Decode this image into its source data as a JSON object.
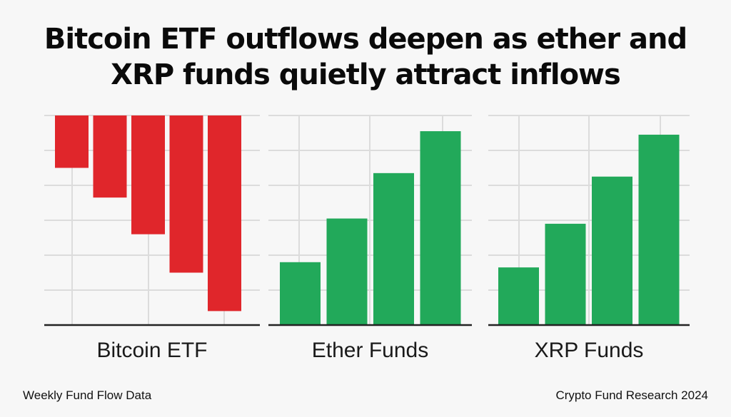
{
  "title": {
    "line1": "Bitcoin ETF outflows deepen as ether and",
    "line2": "XRP funds quietly attract inflows"
  },
  "colors": {
    "outflow": "#e0262b",
    "inflow": "#22a95a",
    "grid": "#dcdcdc",
    "axis": "#222222"
  },
  "chart_data": [
    {
      "type": "bar",
      "panel": "Bitcoin ETF",
      "xlabel": "Bitcoin ETF",
      "series": [
        {
          "name": "Bitcoin ETF",
          "values": [
            -15,
            -23.5,
            -34,
            -45,
            -56
          ]
        }
      ],
      "ylim": [
        -60,
        0
      ],
      "grid": true
    },
    {
      "type": "bar",
      "panel": "Ether Funds",
      "xlabel": "Ether Funds",
      "series": [
        {
          "name": "Ether Funds",
          "values": [
            18,
            30.5,
            43.5,
            55.5
          ]
        }
      ],
      "ylim": [
        0,
        60
      ],
      "grid": true
    },
    {
      "type": "bar",
      "panel": "XRP Funds",
      "xlabel": "XRP Funds",
      "series": [
        {
          "name": "XRP Funds",
          "values": [
            16.5,
            29,
            42.5,
            54.5
          ]
        }
      ],
      "ylim": [
        0,
        60
      ],
      "grid": true
    }
  ],
  "footer": {
    "left": "Weekly Fund Flow Data",
    "right": "Crypto Fund Research 2024"
  }
}
